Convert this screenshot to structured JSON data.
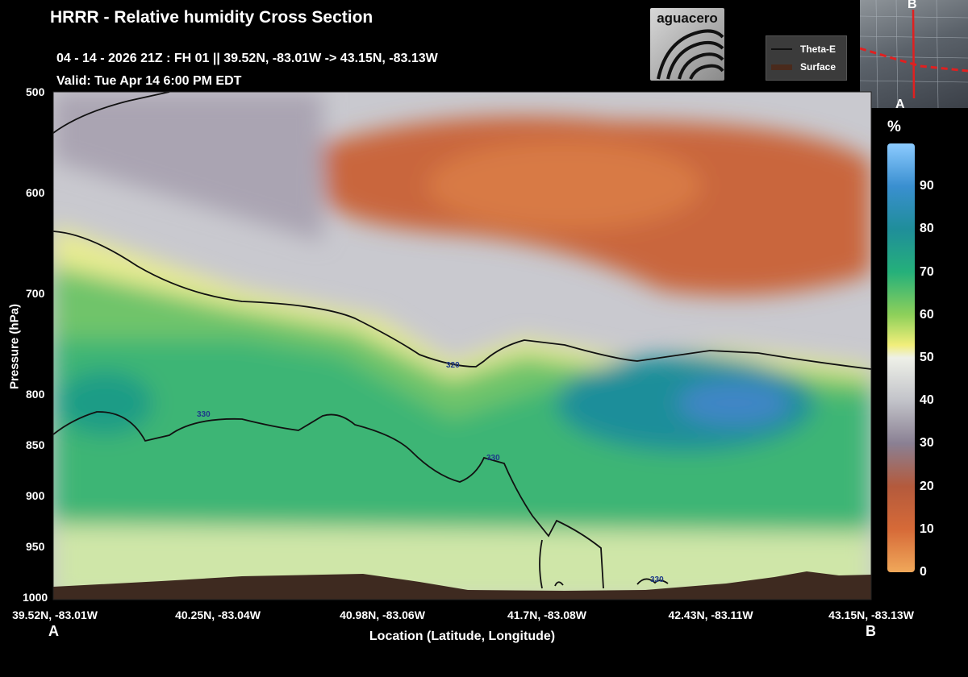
{
  "header": {
    "title": "HRRR - Relative humidity Cross Section",
    "subtitle": "04 - 14 - 2026  21Z : FH 01 || 39.52N, -83.01W -> 43.15N, -83.13W",
    "valid": "Valid: Tue Apr 14 6:00 PM EDT"
  },
  "logo": {
    "text": "aguacero"
  },
  "legend": {
    "theta_e": "Theta-E",
    "surface": "Surface"
  },
  "inset_map": {
    "label_a": "A",
    "label_b": "B"
  },
  "colorbar": {
    "unit": "%",
    "ticks": [
      "90",
      "80",
      "70",
      "60",
      "50",
      "40",
      "30",
      "20",
      "10",
      "0"
    ]
  },
  "colors": {
    "dry": "#c9663e",
    "moist": "#2fae74",
    "very_moist": "#2f86c4",
    "neutral": "#d3d6d6",
    "surface": "#3e2a20",
    "contour": "#111111",
    "contour_label": "#1e3a8a"
  },
  "chart_data": {
    "type": "heatmap",
    "title": "HRRR - Relative humidity Cross Section",
    "xlabel": "Location (Latitude, Longitude)",
    "ylabel": "Pressure (hPa)",
    "y_ticks": [
      "500",
      "600",
      "700",
      "800",
      "850",
      "900",
      "950",
      "1000"
    ],
    "y_tick_values": [
      500,
      600,
      700,
      800,
      850,
      900,
      950,
      1000
    ],
    "ylim": [
      500,
      1000
    ],
    "x_ticks": [
      "39.52N, -83.01W",
      "40.25N, -83.04W",
      "40.98N, -83.06W",
      "41.7N, -83.08W",
      "42.43N, -83.11W",
      "43.15N, -83.13W"
    ],
    "endpoint_labels": [
      "A",
      "B"
    ],
    "colorbar_range": [
      0,
      100
    ],
    "contours": [
      {
        "level": "320",
        "label": "320"
      },
      {
        "level": "330",
        "labels": [
          "330",
          "330",
          "330"
        ]
      }
    ]
  }
}
